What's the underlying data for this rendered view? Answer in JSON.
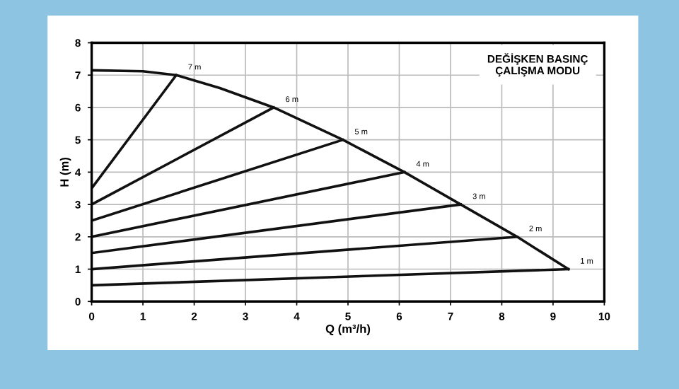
{
  "chart_data": {
    "type": "line",
    "title": "DEĞİŞKEN BASINÇ\nÇALIŞMA MODU",
    "xlabel": "Q (m³/h)",
    "ylabel": "H (m)",
    "xlim": [
      0,
      10
    ],
    "ylim": [
      0,
      8
    ],
    "xticks": [
      0,
      1,
      2,
      3,
      4,
      5,
      6,
      7,
      8,
      9,
      10
    ],
    "yticks": [
      0,
      1,
      2,
      3,
      4,
      5,
      6,
      7,
      8
    ],
    "grid": true,
    "marker": "none",
    "line_style": "solid",
    "series": [
      {
        "color": "#111111",
        "x": [
          0,
          1,
          1.65,
          2.5,
          3.55,
          4.9,
          6.1,
          7.2,
          8.3,
          9.3
        ],
        "values": [
          7.15,
          7.12,
          7,
          6.6,
          6,
          5,
          4,
          3,
          2,
          1
        ]
      },
      {
        "name": "7 m",
        "color": "#111111",
        "x": [
          0,
          1.65
        ],
        "values": [
          3.5,
          7
        ]
      },
      {
        "name": "6 m",
        "color": "#111111",
        "x": [
          0,
          3.55
        ],
        "values": [
          3,
          6
        ]
      },
      {
        "name": "5 m",
        "color": "#111111",
        "x": [
          0,
          4.9
        ],
        "values": [
          2.5,
          5
        ]
      },
      {
        "name": "4 m",
        "color": "#111111",
        "x": [
          0,
          6.1
        ],
        "values": [
          2,
          4
        ]
      },
      {
        "name": "3 m",
        "color": "#111111",
        "x": [
          0,
          7.2
        ],
        "values": [
          1.5,
          3
        ]
      },
      {
        "name": "2 m",
        "color": "#111111",
        "x": [
          0,
          8.3
        ],
        "values": [
          1,
          2
        ]
      },
      {
        "name": "1 m",
        "color": "#111111",
        "x": [
          0,
          9.3
        ],
        "values": [
          0.5,
          1
        ]
      }
    ]
  }
}
